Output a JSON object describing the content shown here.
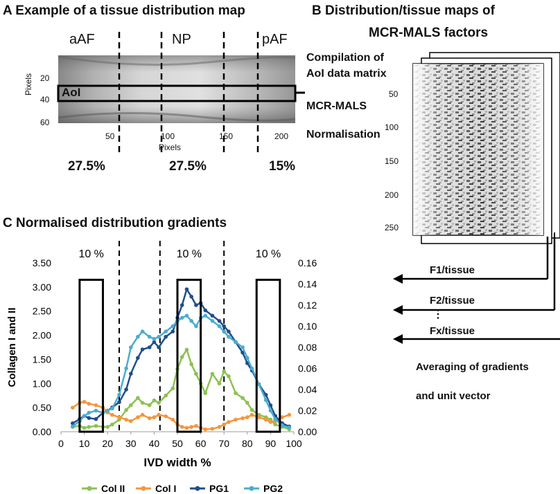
{
  "panel_a": {
    "title": "A Example of a tissue distribution map",
    "regions": [
      "aAF",
      "NP",
      "pAF"
    ],
    "aoi_label": "AoI",
    "y_axis_label": "Pixels",
    "x_axis_label": "Pixels",
    "y_ticks": [
      "20",
      "40",
      "60"
    ],
    "x_ticks": [
      "50",
      "100",
      "150",
      "200"
    ],
    "percentages": [
      "27.5%",
      "27.5%",
      "15%"
    ]
  },
  "panel_b": {
    "title_line1": "B  Distribution/tissue maps of",
    "title_line2": "MCR-MALS factors",
    "steps": [
      "Compilation of",
      "AoI data matrix",
      "MCR-MALS",
      "Normalisation"
    ],
    "y_ticks": [
      "50",
      "100",
      "150",
      "200",
      "250"
    ],
    "factor_labels": [
      "F1/tissue",
      "F2/tissue",
      "Fx/tissue"
    ],
    "ellipsis": "⋮",
    "averaging_line1": "Averaging of gradients",
    "averaging_line2": "and unit vector"
  },
  "colors": {
    "col2": "#8DC152",
    "col1": "#F5963C",
    "pg1": "#1F4E8C",
    "pg2": "#4BACD0"
  },
  "chart_data": {
    "type": "line",
    "title": "C Normalised distribution gradients",
    "xlabel": "IVD width %",
    "ylabel_left": "Collagen I and II",
    "ylabel_right": "PG1 and PG2",
    "xlim": [
      0,
      100
    ],
    "ylim_left": [
      0,
      3.5
    ],
    "ylim_right": [
      0,
      0.16
    ],
    "x_ticks": [
      "0",
      "10",
      "20",
      "30",
      "40",
      "50",
      "60",
      "70",
      "80",
      "90",
      "100"
    ],
    "y_left_ticks": [
      "0.00",
      "0.50",
      "1.00",
      "1.50",
      "2.00",
      "2.50",
      "3.00",
      "3.50"
    ],
    "y_right_ticks": [
      "0.00",
      "0.02",
      "0.04",
      "0.06",
      "0.08",
      "0.10",
      "0.12",
      "0.14",
      "0.16"
    ],
    "window_labels": [
      "10 %",
      "10 %",
      "10 %"
    ],
    "windows": [
      [
        8,
        18
      ],
      [
        50,
        60
      ],
      [
        84,
        94
      ]
    ],
    "dividers": [
      25,
      42.5,
      70
    ],
    "legend_position": "bottom",
    "x": [
      5,
      8,
      10,
      12,
      15,
      18,
      20,
      22,
      25,
      28,
      30,
      33,
      35,
      38,
      40,
      42,
      45,
      48,
      50,
      52,
      54,
      56,
      58,
      60,
      62,
      65,
      68,
      70,
      72,
      75,
      78,
      80,
      82,
      85,
      88,
      90,
      92,
      95,
      98
    ],
    "series": [
      {
        "name": "Col II",
        "axis": "left",
        "values": [
          0.1,
          0.12,
          0.08,
          0.1,
          0.12,
          0.1,
          0.1,
          0.15,
          0.25,
          0.45,
          0.55,
          0.7,
          0.6,
          0.55,
          0.65,
          0.6,
          0.75,
          0.9,
          1.3,
          1.55,
          1.7,
          1.4,
          1.2,
          1.0,
          0.8,
          1.2,
          1.0,
          1.25,
          1.15,
          0.8,
          0.7,
          0.6,
          0.45,
          0.35,
          0.3,
          0.25,
          0.15,
          0.1,
          0.05
        ]
      },
      {
        "name": "Col I",
        "axis": "left",
        "values": [
          0.5,
          0.6,
          0.62,
          0.58,
          0.55,
          0.5,
          0.4,
          0.35,
          0.3,
          0.25,
          0.22,
          0.3,
          0.35,
          0.28,
          0.3,
          0.35,
          0.32,
          0.25,
          0.15,
          0.1,
          0.08,
          0.1,
          0.12,
          0.08,
          0.05,
          0.06,
          0.1,
          0.15,
          0.2,
          0.25,
          0.28,
          0.3,
          0.35,
          0.3,
          0.25,
          0.2,
          0.22,
          0.3,
          0.35
        ]
      },
      {
        "name": "PG1",
        "axis": "right",
        "values": [
          0.008,
          0.012,
          0.015,
          0.013,
          0.012,
          0.018,
          0.02,
          0.023,
          0.028,
          0.04,
          0.055,
          0.07,
          0.078,
          0.08,
          0.085,
          0.08,
          0.09,
          0.095,
          0.108,
          0.12,
          0.135,
          0.128,
          0.12,
          0.122,
          0.115,
          0.11,
          0.105,
          0.1,
          0.095,
          0.085,
          0.075,
          0.065,
          0.058,
          0.045,
          0.035,
          0.025,
          0.015,
          0.008,
          0.005
        ]
      },
      {
        "name": "PG2",
        "axis": "right",
        "values": [
          0.005,
          0.01,
          0.015,
          0.018,
          0.02,
          0.018,
          0.02,
          0.022,
          0.035,
          0.06,
          0.08,
          0.09,
          0.095,
          0.09,
          0.088,
          0.09,
          0.095,
          0.1,
          0.105,
          0.108,
          0.11,
          0.105,
          0.1,
          0.108,
          0.11,
          0.105,
          0.1,
          0.095,
          0.09,
          0.085,
          0.08,
          0.07,
          0.06,
          0.045,
          0.03,
          0.02,
          0.012,
          0.006,
          0.004
        ]
      }
    ]
  }
}
